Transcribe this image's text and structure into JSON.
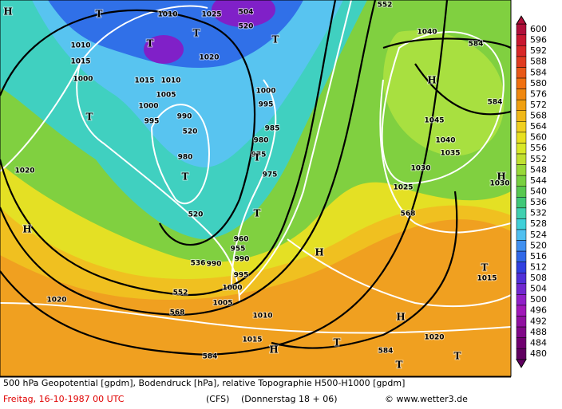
{
  "map": {
    "labels": [
      "1010",
      "1025",
      "504",
      "520",
      "552",
      "T",
      "T",
      "T",
      "T",
      "H",
      "1020",
      "1010",
      "1015",
      "1000",
      "1015",
      "1010",
      "1005",
      "1000",
      "995",
      "990",
      "520",
      "1000",
      "995",
      "985",
      "980",
      "975",
      "975",
      "980",
      "T",
      "520",
      "T",
      "T",
      "T",
      "1040",
      "584",
      "H",
      "584",
      "1045",
      "1040",
      "1035",
      "1030",
      "1025",
      "H",
      "1030",
      "568",
      "1020",
      "H",
      "960",
      "955",
      "990",
      "995",
      "536",
      "990",
      "H",
      "1000",
      "552",
      "1020",
      "568",
      "1005",
      "1010",
      "H",
      "1015",
      "T",
      "584",
      "H",
      "584",
      "T",
      "T",
      "1020",
      "1015",
      "T"
    ],
    "colorbar": {
      "labels": [
        600,
        596,
        592,
        588,
        584,
        580,
        576,
        572,
        568,
        564,
        560,
        556,
        552,
        548,
        544,
        540,
        536,
        532,
        528,
        524,
        520,
        516,
        512,
        508,
        504,
        500,
        496,
        492,
        488,
        484,
        480
      ],
      "colors": [
        "#b0103a",
        "#c81830",
        "#d82828",
        "#e03c20",
        "#e85818",
        "#f07010",
        "#f08810",
        "#f0a010",
        "#f0b818",
        "#f0d020",
        "#e8e020",
        "#d8e828",
        "#c0e030",
        "#98d838",
        "#78d040",
        "#58c850",
        "#40c878",
        "#40d0b0",
        "#40d0d8",
        "#50c0f0",
        "#4090f0",
        "#3068e8",
        "#3040e0",
        "#5030d8",
        "#7028d0",
        "#9020c8",
        "#a018b8",
        "#9010a0",
        "#800888",
        "#700070",
        "#600060"
      ]
    },
    "footer": {
      "description": "500 hPa Geopotential [gpdm], Bodendruck [hPa], relative Topographie H500-H1000 [gpdm]",
      "date": "Freitag, 16-10-1987  00 UTC",
      "model": "(CFS)",
      "run": "(Donnerstag 18 + 06)",
      "credit": "© www.wetter3.de"
    }
  }
}
